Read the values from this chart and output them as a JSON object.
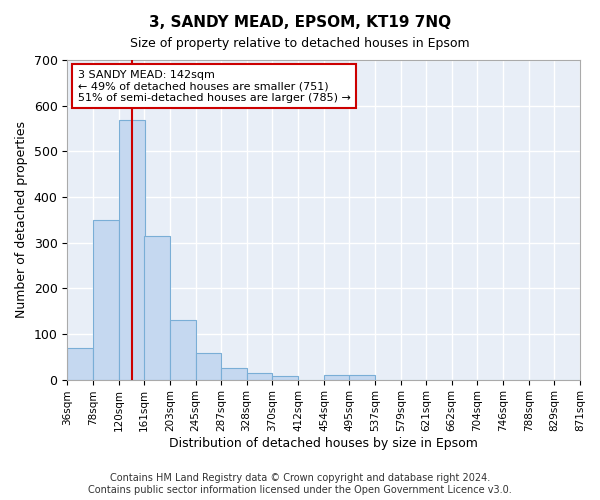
{
  "title": "3, SANDY MEAD, EPSOM, KT19 7NQ",
  "subtitle": "Size of property relative to detached houses in Epsom",
  "xlabel": "Distribution of detached houses by size in Epsom",
  "ylabel": "Number of detached properties",
  "bar_color": "#c5d8f0",
  "bar_edge_color": "#7aaed6",
  "background_color": "#e8eef7",
  "grid_color": "#ffffff",
  "vline_value": 142,
  "vline_color": "#cc0000",
  "annotation_text": "3 SANDY MEAD: 142sqm\n← 49% of detached houses are smaller (751)\n51% of semi-detached houses are larger (785) →",
  "annotation_box_color": "#ffffff",
  "annotation_edge_color": "#cc0000",
  "bins": [
    36,
    78,
    120,
    161,
    203,
    245,
    287,
    328,
    370,
    412,
    454,
    495,
    537,
    579,
    621,
    662,
    704,
    746,
    788,
    829,
    871
  ],
  "counts": [
    70,
    350,
    568,
    315,
    130,
    58,
    25,
    15,
    8,
    0,
    10,
    10,
    0,
    0,
    0,
    0,
    0,
    0,
    0,
    0
  ],
  "ylim": [
    0,
    700
  ],
  "yticks": [
    0,
    100,
    200,
    300,
    400,
    500,
    600,
    700
  ],
  "footnote": "Contains HM Land Registry data © Crown copyright and database right 2024.\nContains public sector information licensed under the Open Government Licence v3.0.",
  "footnote_fontsize": 7.0,
  "title_fontsize": 11,
  "subtitle_fontsize": 9,
  "ylabel_fontsize": 9,
  "xlabel_fontsize": 9,
  "ytick_fontsize": 9,
  "xtick_fontsize": 7.5
}
